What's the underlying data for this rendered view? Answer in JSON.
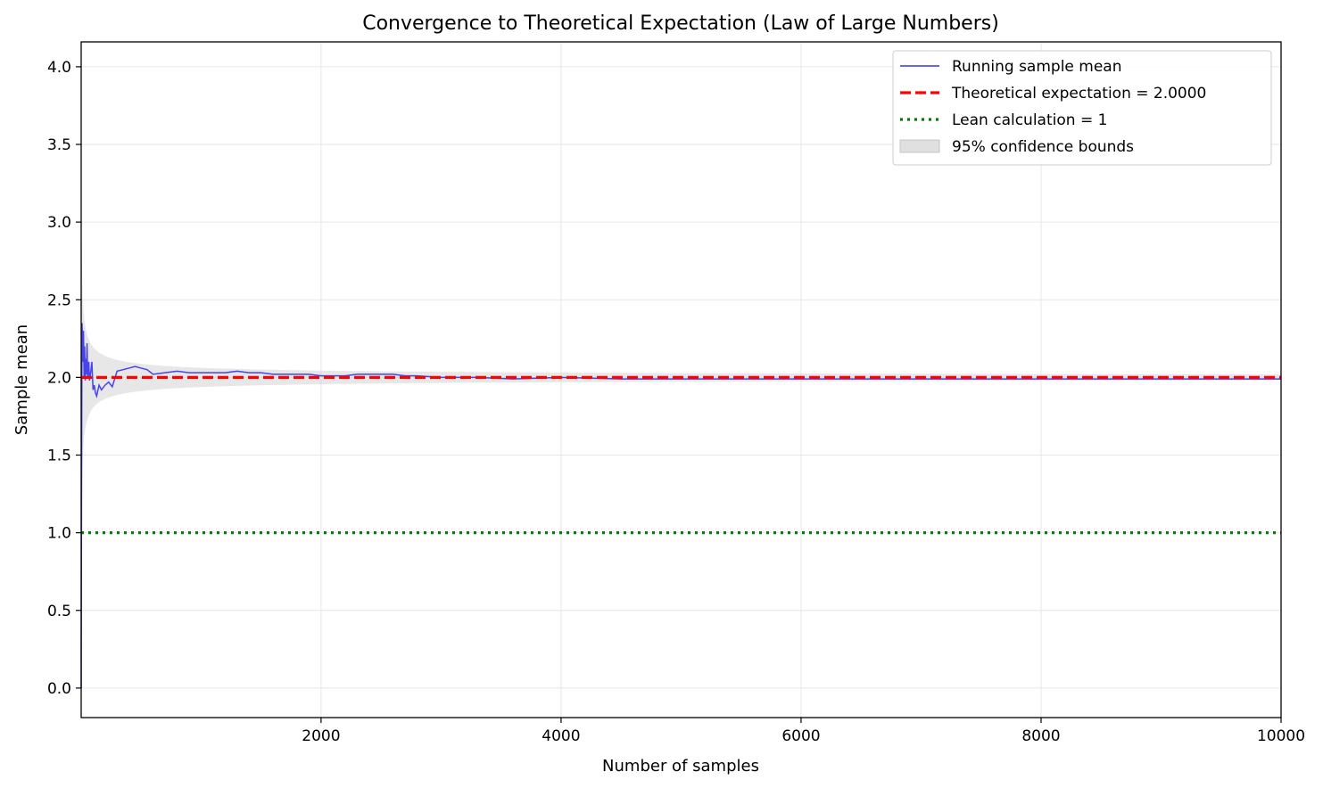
{
  "chart_data": {
    "type": "line",
    "title": "Convergence to Theoretical Expectation (Law of Large Numbers)",
    "xlabel": "Number of samples",
    "ylabel": "Sample mean",
    "xlim": [
      1,
      10000
    ],
    "ylim": [
      -0.19,
      4.16
    ],
    "xticks": [
      2000,
      4000,
      6000,
      8000,
      10000
    ],
    "xtick_labels": [
      "2000",
      "4000",
      "6000",
      "8000",
      "10000"
    ],
    "yticks": [
      0.0,
      0.5,
      1.0,
      1.5,
      2.0,
      2.5,
      3.0,
      3.5,
      4.0
    ],
    "ytick_labels": [
      "0.0",
      "0.5",
      "1.0",
      "1.5",
      "2.0",
      "2.5",
      "3.0",
      "3.5",
      "4.0"
    ],
    "grid": true,
    "legend_position": "top-right",
    "series": [
      {
        "name": "Running sample mean",
        "kind": "line",
        "color": "#3333ee",
        "x": [
          1,
          3,
          5,
          8,
          12,
          16,
          20,
          25,
          30,
          35,
          40,
          45,
          50,
          55,
          60,
          65,
          70,
          80,
          90,
          100,
          110,
          120,
          130,
          150,
          170,
          200,
          230,
          260,
          300,
          350,
          400,
          450,
          500,
          550,
          600,
          700,
          800,
          900,
          1000,
          1100,
          1200,
          1300,
          1400,
          1500,
          1600,
          1700,
          1800,
          1900,
          2000,
          2100,
          2200,
          2300,
          2400,
          2500,
          2600,
          2700,
          2800,
          3000,
          3300,
          3600,
          4000,
          4500,
          5000,
          5500,
          6000,
          6500,
          7000,
          7500,
          8000,
          8500,
          9000,
          9500,
          10000
        ],
        "y": [
          0.0,
          0.9,
          1.6,
          2.35,
          2.25,
          2.1,
          2.3,
          2.0,
          2.2,
          1.98,
          2.12,
          2.02,
          2.22,
          2.0,
          2.05,
          2.1,
          1.98,
          2.03,
          2.1,
          1.92,
          1.95,
          1.9,
          1.88,
          1.95,
          1.92,
          1.95,
          1.97,
          1.94,
          2.04,
          2.05,
          2.06,
          2.07,
          2.06,
          2.05,
          2.02,
          2.03,
          2.04,
          2.03,
          2.03,
          2.03,
          2.03,
          2.04,
          2.03,
          2.03,
          2.02,
          2.02,
          2.02,
          2.02,
          2.01,
          2.01,
          2.01,
          2.02,
          2.02,
          2.02,
          2.02,
          2.01,
          2.01,
          2.0,
          2.0,
          1.99,
          2.0,
          1.99,
          1.99,
          1.99,
          1.99,
          1.99,
          1.99,
          1.99,
          1.99,
          1.99,
          1.99,
          1.99,
          1.99
        ]
      },
      {
        "name": "Theoretical expectation = 2.0000",
        "kind": "hline",
        "value": 2.0,
        "color": "#ff0000",
        "style": "dashed"
      },
      {
        "name": "Lean calculation = 1",
        "kind": "hline",
        "value": 1.0,
        "color": "#008000",
        "style": "dotted"
      },
      {
        "name": "95% confidence bounds",
        "kind": "band",
        "center": 2.0,
        "halfwidth_at_1": 1.96,
        "decay": "1/sqrt(n)",
        "color": "#d3d3d3"
      }
    ]
  }
}
